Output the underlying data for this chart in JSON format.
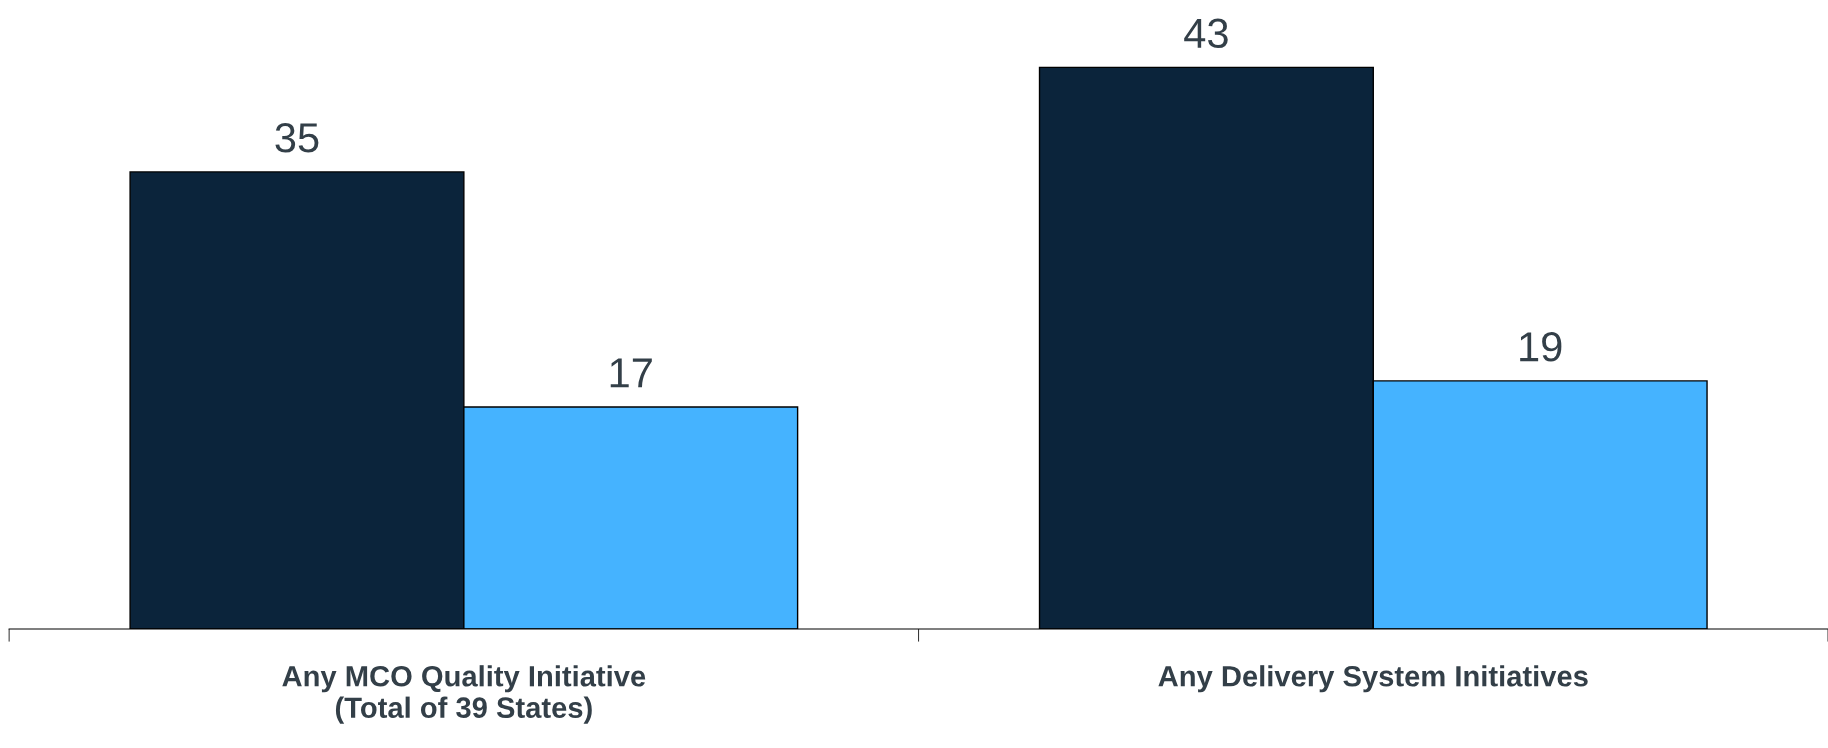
{
  "chart_data": {
    "type": "bar",
    "categories": [
      "Any MCO Quality Initiative\n(Total of 39 States)",
      "Any Delivery System Initiatives"
    ],
    "series": [
      {
        "color": "#0b243b",
        "values": [
          35,
          43
        ]
      },
      {
        "color": "#45b3ff",
        "values": [
          17,
          19
        ]
      }
    ],
    "data_labels": true,
    "grid": false,
    "legend": false
  }
}
